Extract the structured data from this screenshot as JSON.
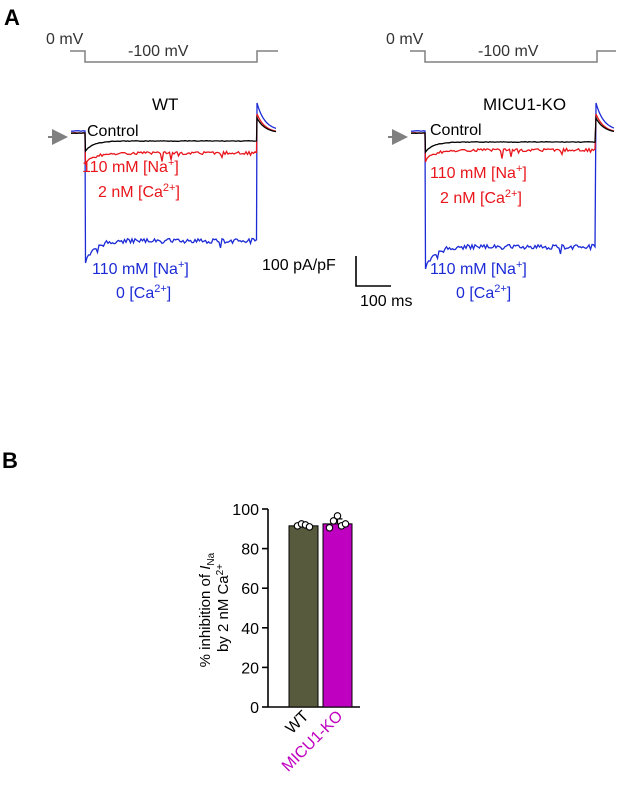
{
  "panel_a": {
    "label": "A",
    "protocol": {
      "holding": "0 mV",
      "step": "-100 mV"
    },
    "wt": {
      "title": "WT",
      "control_label": "Control",
      "red_label_1": "110 mM [Na",
      "red_label_1_sup": "+",
      "red_label_1_end": "]",
      "red_label_2": "2 nM [Ca",
      "red_label_2_sup": "2+",
      "red_label_2_end": "]",
      "blue_label_1": "110 mM [Na",
      "blue_label_1_sup": "+",
      "blue_label_1_end": "]",
      "blue_label_2": "0 [Ca",
      "blue_label_2_sup": "2+",
      "blue_label_2_end": "]"
    },
    "ko": {
      "title": "MICU1-KO",
      "control_label": "Control",
      "red_label_1": "110 mM [Na",
      "red_label_1_sup": "+",
      "red_label_1_end": "]",
      "red_label_2": "2 nM [Ca",
      "red_label_2_sup": "2+",
      "red_label_2_end": "]",
      "blue_label_1": "110 mM [Na",
      "blue_label_1_sup": "+",
      "blue_label_1_end": "]",
      "blue_label_2": "0 [Ca",
      "blue_label_2_sup": "2+",
      "blue_label_2_end": "]"
    },
    "scalebar": {
      "y_label": "100 pA/pF",
      "x_label": "100 ms"
    },
    "colors": {
      "control": "#000000",
      "red": "#e8161b",
      "blue": "#1c2bd6",
      "protocol": "#808080",
      "arrow": "#808080"
    }
  },
  "panel_b": {
    "label": "B"
  },
  "chart_data": {
    "type": "bar",
    "categories": [
      "WT",
      "MICU1-KO"
    ],
    "values": [
      91.5,
      92.5
    ],
    "errors": [
      1.0,
      2.5
    ],
    "points": [
      [
        91.5,
        92.5,
        92.0,
        91.0
      ],
      [
        90.5,
        94.0,
        96.5,
        91.5,
        92.5
      ]
    ],
    "ylabel_line1": "% inhibition of ",
    "ylabel_italic": "I",
    "ylabel_sub": "Na",
    "ylabel_line2": "by 2 nM Ca",
    "ylabel_line2_sup": "2+",
    "ylim": [
      0,
      100
    ],
    "yticks": [
      "0",
      "20",
      "40",
      "60",
      "80",
      "100"
    ],
    "colors": [
      "#575a3c",
      "#c000c0"
    ],
    "tick_label_colors": [
      "#000000",
      "#c000c0"
    ]
  }
}
